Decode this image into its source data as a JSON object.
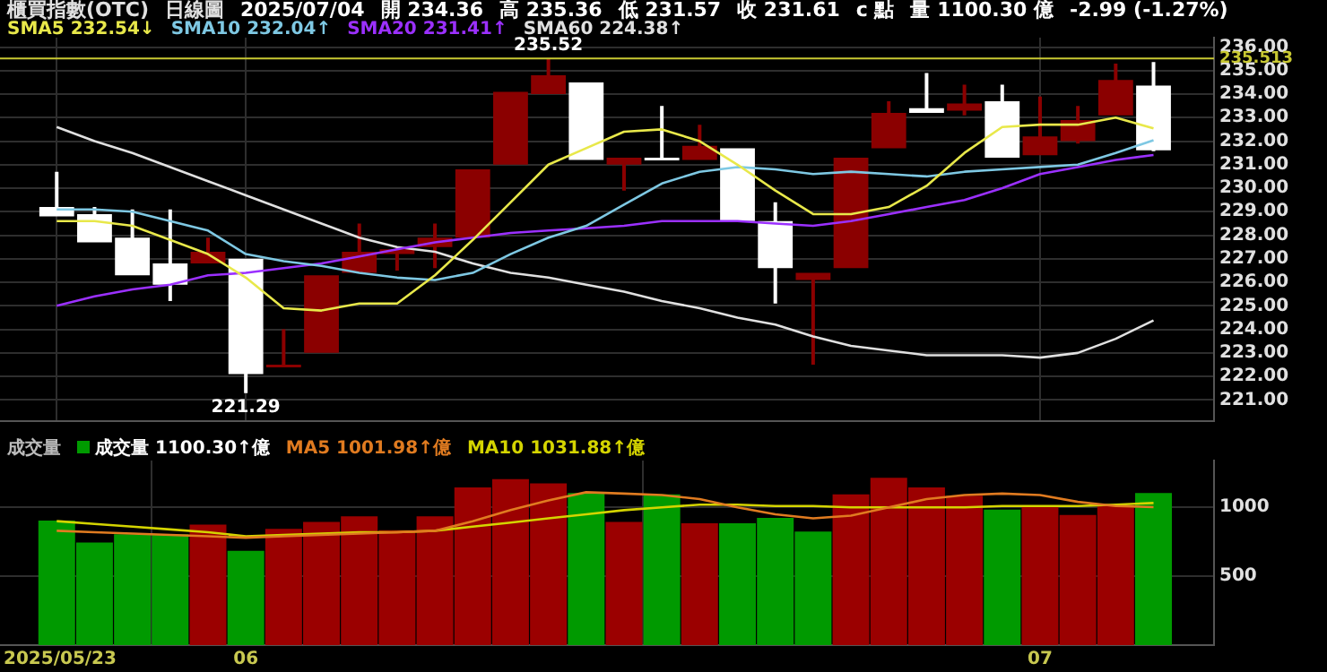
{
  "chart_data": [
    {
      "type": "candlestick",
      "title": "櫃買指數(OTC)",
      "subtitle": "日線圖",
      "annotations": [
        "2025/07/04",
        "開 234.36",
        "高 235.36",
        "低 231.57",
        "收 231.61",
        "c 點",
        "量 1100.30 億",
        "-2.99 (-1.27%)",
        {
          "text": "235.52",
          "y": 235.52
        },
        {
          "text": "221.29",
          "y": 221.29
        }
      ],
      "categories": [
        "2025/05/23",
        null,
        null,
        null,
        null,
        "06",
        null,
        null,
        null,
        null,
        null,
        null,
        null,
        null,
        null,
        null,
        null,
        null,
        null,
        null,
        null,
        null,
        null,
        null,
        null,
        null,
        "07",
        null,
        null,
        null
      ],
      "ohlc": [
        [
          229.2,
          230.7,
          228.8,
          228.8
        ],
        [
          228.9,
          229.2,
          227.7,
          227.7
        ],
        [
          227.9,
          229.1,
          226.3,
          226.3
        ],
        [
          226.8,
          229.1,
          225.2,
          225.9
        ],
        [
          226.8,
          227.9,
          226.8,
          227.3
        ],
        [
          227.0,
          227.0,
          221.29,
          222.1
        ],
        [
          222.4,
          224.0,
          222.4,
          222.5
        ],
        [
          223.0,
          226.3,
          223.0,
          226.3
        ],
        [
          226.4,
          228.5,
          226.4,
          227.3
        ],
        [
          227.2,
          227.5,
          226.5,
          227.4
        ],
        [
          227.5,
          228.5,
          226.6,
          227.9
        ],
        [
          227.9,
          230.8,
          227.9,
          230.8
        ],
        [
          231.0,
          234.1,
          231.0,
          234.1
        ],
        [
          234.0,
          235.52,
          234.0,
          234.8
        ],
        [
          234.5,
          234.5,
          231.2,
          231.2
        ],
        [
          231.0,
          231.3,
          229.9,
          231.3
        ],
        [
          231.3,
          233.5,
          231.2,
          231.2
        ],
        [
          231.2,
          232.7,
          231.2,
          231.8
        ],
        [
          231.7,
          231.7,
          228.6,
          228.6
        ],
        [
          228.6,
          229.4,
          225.1,
          226.6
        ],
        [
          226.1,
          226.4,
          222.5,
          226.4
        ],
        [
          226.6,
          231.3,
          226.6,
          231.3
        ],
        [
          231.7,
          233.7,
          231.7,
          233.2
        ],
        [
          233.4,
          234.9,
          233.2,
          233.2
        ],
        [
          233.3,
          234.4,
          233.1,
          233.6
        ],
        [
          233.7,
          234.4,
          231.3,
          231.3
        ],
        [
          231.4,
          233.9,
          231.4,
          232.2
        ],
        [
          232.0,
          233.5,
          231.9,
          232.9
        ],
        [
          233.1,
          235.3,
          233.1,
          234.6
        ],
        [
          234.36,
          235.36,
          231.57,
          231.61
        ]
      ],
      "colors": [
        "#ffffff",
        "#ffffff",
        "#ffffff",
        "#ffffff",
        "#8b0000",
        "#ffffff",
        "#8b0000",
        "#8b0000",
        "#8b0000",
        "#8b0000",
        "#8b0000",
        "#8b0000",
        "#8b0000",
        "#8b0000",
        "#ffffff",
        "#8b0000",
        "#ffffff",
        "#8b0000",
        "#ffffff",
        "#ffffff",
        "#8b0000",
        "#8b0000",
        "#8b0000",
        "#ffffff",
        "#8b0000",
        "#ffffff",
        "#8b0000",
        "#8b0000",
        "#8b0000",
        "#ffffff"
      ],
      "series": [
        {
          "name": "SMA5 232.54↓",
          "type": "line",
          "color": "#e8e84a",
          "values": [
            228.6,
            228.6,
            228.4,
            227.8,
            227.2,
            226.2,
            224.9,
            224.8,
            225.1,
            225.1,
            226.3,
            227.8,
            229.4,
            231.0,
            231.7,
            232.4,
            232.5,
            232.0,
            231.0,
            229.9,
            228.9,
            228.9,
            229.2,
            230.1,
            231.5,
            232.6,
            232.7,
            232.7,
            233.0,
            232.54
          ]
        },
        {
          "name": "SMA10 232.04↑",
          "type": "line",
          "color": "#7ec8e3",
          "values": [
            229.1,
            229.1,
            229.0,
            228.6,
            228.2,
            227.2,
            226.9,
            226.7,
            226.4,
            226.2,
            226.1,
            226.4,
            227.2,
            227.9,
            228.4,
            229.3,
            230.2,
            230.7,
            230.9,
            230.8,
            230.6,
            230.7,
            230.6,
            230.5,
            230.7,
            230.8,
            230.9,
            231.0,
            231.5,
            232.04
          ]
        },
        {
          "name": "SMA20 231.41↑",
          "type": "line",
          "color": "#9b30ff",
          "values": [
            225.0,
            225.4,
            225.7,
            225.9,
            226.3,
            226.4,
            226.6,
            226.8,
            227.1,
            227.4,
            227.7,
            227.9,
            228.1,
            228.2,
            228.3,
            228.4,
            228.6,
            228.6,
            228.6,
            228.5,
            228.4,
            228.6,
            228.9,
            229.2,
            229.5,
            230.0,
            230.6,
            230.9,
            231.2,
            231.41
          ]
        },
        {
          "name": "SMA60 224.38↑",
          "type": "line",
          "color": "#e0e0e0",
          "values": [
            232.6,
            232.0,
            231.5,
            230.9,
            230.3,
            229.7,
            229.1,
            228.5,
            227.9,
            227.5,
            227.3,
            226.8,
            226.4,
            226.2,
            225.9,
            225.6,
            225.2,
            224.9,
            224.5,
            224.2,
            223.7,
            223.3,
            223.1,
            222.9,
            222.9,
            222.9,
            222.8,
            223.0,
            223.6,
            224.38
          ]
        }
      ],
      "ylim": [
        220.1,
        236.4
      ],
      "yticks": [
        {
          "value": 221,
          "label": "221.00"
        },
        {
          "value": 222,
          "label": "222.00"
        },
        {
          "value": 223,
          "label": "223.00"
        },
        {
          "value": 224,
          "label": "224.00"
        },
        {
          "value": 225,
          "label": "225.00"
        },
        {
          "value": 226,
          "label": "226.00"
        },
        {
          "value": 227,
          "label": "227.00"
        },
        {
          "value": 228,
          "label": "228.00"
        },
        {
          "value": 229,
          "label": "229.00"
        },
        {
          "value": 230,
          "label": "230.00"
        },
        {
          "value": 231,
          "label": "231.00"
        },
        {
          "value": 232,
          "label": "232.00"
        },
        {
          "value": 233,
          "label": "233.00"
        },
        {
          "value": 234,
          "label": "234.00"
        },
        {
          "value": 235,
          "label": "235.00"
        },
        {
          "value": 236,
          "label": "236.00"
        }
      ],
      "ref_lines": [
        {
          "axis": "y",
          "value": 235.513,
          "label": "235.513",
          "color": "#c8c832"
        }
      ],
      "grid": true,
      "legend": "top left",
      "tick_labels": "y"
    },
    {
      "type": "bar",
      "title": "成交量",
      "categories": [
        "2025/05/23",
        null,
        null,
        null,
        null,
        "06",
        null,
        null,
        null,
        null,
        null,
        null,
        null,
        null,
        null,
        null,
        null,
        null,
        null,
        null,
        null,
        null,
        null,
        null,
        null,
        null,
        "07",
        null,
        null,
        null
      ],
      "series": [
        {
          "name": "成交量 1100.30↑億",
          "colors": [
            "#009a00",
            "#009a00",
            "#009a00",
            "#009a00",
            "#9b0000",
            "#009a00",
            "#9b0000",
            "#9b0000",
            "#9b0000",
            "#9b0000",
            "#9b0000",
            "#9b0000",
            "#9b0000",
            "#9b0000",
            "#009a00",
            "#9b0000",
            "#009a00",
            "#9b0000",
            "#009a00",
            "#009a00",
            "#009a00",
            "#9b0000",
            "#9b0000",
            "#9b0000",
            "#9b0000",
            "#009a00",
            "#9b0000",
            "#9b0000",
            "#9b0000",
            "#009a00"
          ],
          "values": [
            900,
            740,
            800,
            800,
            870,
            680,
            840,
            890,
            930,
            830,
            930,
            1140,
            1200,
            1170,
            1100,
            890,
            1090,
            880,
            880,
            920,
            820,
            1090,
            1210,
            1140,
            1080,
            980,
            1000,
            940,
            1010,
            1100
          ]
        },
        {
          "name": "MA5 1001.98↑億",
          "type": "line",
          "color": "#e07b20",
          "values": [
            830,
            820,
            810,
            800,
            790,
            780,
            790,
            800,
            810,
            820,
            830,
            900,
            980,
            1050,
            1110,
            1100,
            1090,
            1060,
            1000,
            950,
            920,
            940,
            1000,
            1060,
            1090,
            1100,
            1090,
            1040,
            1010,
            1002
          ]
        },
        {
          "name": "MA10 1031.88↑億",
          "type": "line",
          "color": "#d4d400",
          "values": [
            900,
            880,
            860,
            840,
            820,
            790,
            800,
            810,
            820,
            820,
            830,
            860,
            890,
            920,
            950,
            980,
            1000,
            1020,
            1020,
            1010,
            1010,
            1000,
            1000,
            1000,
            1000,
            1010,
            1010,
            1010,
            1020,
            1032
          ]
        }
      ],
      "ylim": [
        0,
        1340
      ],
      "yticks": [
        500,
        1000
      ],
      "grid": true,
      "legend": "top left"
    }
  ]
}
